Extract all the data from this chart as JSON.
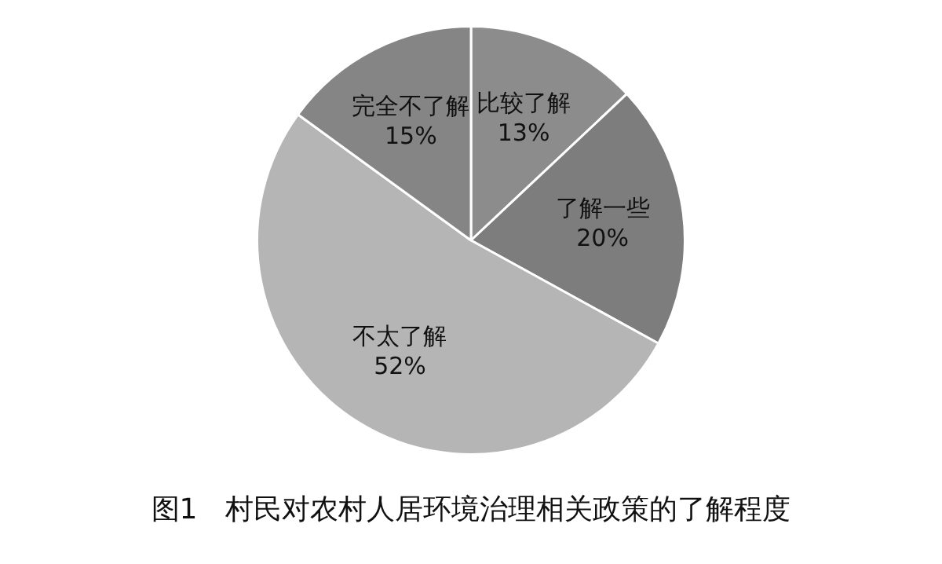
{
  "chart_data": {
    "type": "pie",
    "title": "图1　村民对农村人居环境治理相关政策的了解程度",
    "categories": [
      "比较了解",
      "了解一些",
      "不太了解",
      "完全不了解"
    ],
    "values": [
      13,
      20,
      52,
      15
    ],
    "value_labels": [
      "13%",
      "20%",
      "52%",
      "15%"
    ],
    "colors": [
      "#8c8c8c",
      "#7d7d7d",
      "#b5b5b5",
      "#858585"
    ],
    "legend": false
  }
}
